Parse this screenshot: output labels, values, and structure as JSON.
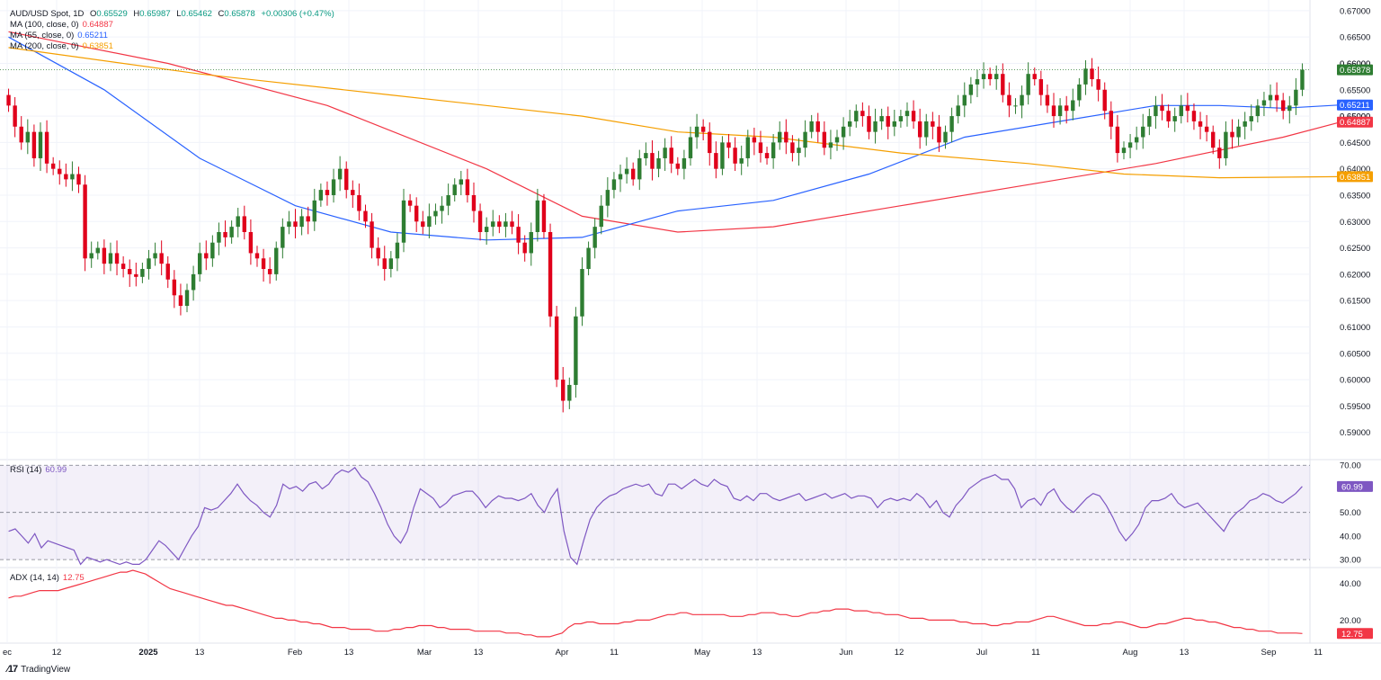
{
  "header": {
    "symbol": "AUD/USD Spot, 1D",
    "open_label": "O",
    "open": "0.65529",
    "high_label": "H",
    "high": "0.65987",
    "low_label": "L",
    "low": "0.65462",
    "close_label": "C",
    "close": "0.65878",
    "change": "+0.00306 (+0.47%)"
  },
  "ma_legend": [
    {
      "label": "MA (100, close, 0)",
      "value": "0.64887",
      "color": "#f23645"
    },
    {
      "label": "MA (55, close, 0)",
      "value": "0.65211",
      "color": "#2962ff"
    },
    {
      "label": "MA (200, close, 0)",
      "value": "0.63851",
      "color": "#f59f00"
    }
  ],
  "rsi_legend": {
    "label": "RSI (14)",
    "value": "60.99",
    "color": "#7e57c2"
  },
  "adx_legend": {
    "label": "ADX (14, 14)",
    "value": "12.75",
    "color": "#f23645"
  },
  "branding": "TradingView",
  "colors": {
    "up": "#26a69a",
    "up_body": "#2e7d32",
    "down": "#e0001b",
    "grid": "#f0f3fa"
  },
  "chart_data": [
    {
      "type": "candlestick",
      "title": "AUD/USD Spot, 1D",
      "ylim": [
        0.585,
        0.671
      ],
      "yticks": [
        "0.67000",
        "0.66500",
        "0.66000",
        "0.65500",
        "0.65000",
        "0.64500",
        "0.64000",
        "0.63500",
        "0.63000",
        "0.62500",
        "0.62000",
        "0.61500",
        "0.61000",
        "0.60500",
        "0.60000",
        "0.59500",
        "0.59000"
      ],
      "xticks": [
        "ec",
        "12",
        "2025",
        "13",
        "Feb",
        "13",
        "Mar",
        "13",
        "Apr",
        "11",
        "May",
        "13",
        "Jun",
        "12",
        "Jul",
        "11",
        "Aug",
        "13",
        "Sep",
        "11"
      ],
      "last_price": {
        "value": 0.65878,
        "label": "0.65878"
      },
      "price_tags": [
        {
          "label": "0.66000",
          "value": 0.66,
          "color": "#131722",
          "bg": "none"
        },
        {
          "label": "0.65878",
          "value": 0.65878,
          "color": "#ffffff",
          "bg": "#2e7d32"
        },
        {
          "label": "0.65211",
          "value": 0.65211,
          "color": "#ffffff",
          "bg": "#2962ff"
        },
        {
          "label": "0.65000",
          "value": 0.65,
          "color": "#131722",
          "bg": "none"
        },
        {
          "label": "0.64887",
          "value": 0.64887,
          "color": "#ffffff",
          "bg": "#f23645"
        },
        {
          "label": "0.63851",
          "value": 0.63851,
          "color": "#ffffff",
          "bg": "#f59f00"
        }
      ],
      "closes": [
        0.652,
        0.648,
        0.645,
        0.647,
        0.642,
        0.647,
        0.641,
        0.64,
        0.639,
        0.638,
        0.639,
        0.637,
        0.623,
        0.624,
        0.625,
        0.622,
        0.624,
        0.622,
        0.621,
        0.62,
        0.6195,
        0.621,
        0.623,
        0.624,
        0.622,
        0.619,
        0.616,
        0.614,
        0.617,
        0.62,
        0.624,
        0.623,
        0.626,
        0.628,
        0.627,
        0.629,
        0.631,
        0.628,
        0.624,
        0.623,
        0.621,
        0.62,
        0.625,
        0.629,
        0.63,
        0.629,
        0.631,
        0.63,
        0.634,
        0.636,
        0.635,
        0.638,
        0.64,
        0.636,
        0.635,
        0.632,
        0.63,
        0.625,
        0.623,
        0.621,
        0.623,
        0.626,
        0.634,
        0.633,
        0.63,
        0.629,
        0.631,
        0.632,
        0.633,
        0.635,
        0.637,
        0.638,
        0.635,
        0.632,
        0.628,
        0.629,
        0.63,
        0.629,
        0.63,
        0.629,
        0.626,
        0.624,
        0.628,
        0.634,
        0.628,
        0.612,
        0.6,
        0.596,
        0.599,
        0.612,
        0.621,
        0.625,
        0.629,
        0.633,
        0.636,
        0.638,
        0.639,
        0.64,
        0.638,
        0.642,
        0.643,
        0.64,
        0.642,
        0.644,
        0.641,
        0.64,
        0.642,
        0.646,
        0.648,
        0.647,
        0.643,
        0.64,
        0.645,
        0.644,
        0.641,
        0.642,
        0.646,
        0.645,
        0.643,
        0.642,
        0.645,
        0.647,
        0.645,
        0.643,
        0.644,
        0.647,
        0.649,
        0.647,
        0.644,
        0.645,
        0.646,
        0.648,
        0.649,
        0.651,
        0.65,
        0.647,
        0.649,
        0.65,
        0.648,
        0.649,
        0.65,
        0.651,
        0.649,
        0.646,
        0.649,
        0.648,
        0.645,
        0.647,
        0.65,
        0.652,
        0.654,
        0.656,
        0.657,
        0.658,
        0.657,
        0.658,
        0.654,
        0.652,
        0.652,
        0.654,
        0.658,
        0.657,
        0.654,
        0.652,
        0.65,
        0.652,
        0.651,
        0.653,
        0.656,
        0.659,
        0.657,
        0.655,
        0.651,
        0.648,
        0.643,
        0.644,
        0.645,
        0.646,
        0.648,
        0.65,
        0.652,
        0.651,
        0.649,
        0.65,
        0.652,
        0.651,
        0.649,
        0.648,
        0.647,
        0.644,
        0.642,
        0.647,
        0.646,
        0.648,
        0.649,
        0.65,
        0.652,
        0.653,
        0.654,
        0.653,
        0.651,
        0.652,
        0.655,
        0.6588
      ],
      "series": [
        {
          "name": "MA (100, close, 0)",
          "color": "#f23645",
          "points": [
            [
              0,
              0.666
            ],
            [
              25,
              0.66
            ],
            [
              50,
              0.652
            ],
            [
              75,
              0.64
            ],
            [
              90,
              0.631
            ],
            [
              105,
              0.628
            ],
            [
              120,
              0.629
            ],
            [
              140,
              0.633
            ],
            [
              160,
              0.637
            ],
            [
              180,
              0.641
            ],
            [
              200,
              0.646
            ],
            [
              209,
              0.64887
            ]
          ]
        },
        {
          "name": "MA (55, close, 0)",
          "color": "#2962ff",
          "points": [
            [
              0,
              0.665
            ],
            [
              15,
              0.655
            ],
            [
              30,
              0.642
            ],
            [
              45,
              0.633
            ],
            [
              60,
              0.628
            ],
            [
              75,
              0.6265
            ],
            [
              90,
              0.627
            ],
            [
              105,
              0.632
            ],
            [
              120,
              0.634
            ],
            [
              135,
              0.639
            ],
            [
              150,
              0.646
            ],
            [
              165,
              0.649
            ],
            [
              180,
              0.652
            ],
            [
              190,
              0.652
            ],
            [
              200,
              0.6515
            ],
            [
              209,
              0.65211
            ]
          ]
        },
        {
          "name": "MA (200, close, 0)",
          "color": "#f59f00",
          "points": [
            [
              0,
              0.663
            ],
            [
              30,
              0.658
            ],
            [
              60,
              0.654
            ],
            [
              90,
              0.65
            ],
            [
              105,
              0.647
            ],
            [
              120,
              0.646
            ],
            [
              140,
              0.643
            ],
            [
              160,
              0.641
            ],
            [
              175,
              0.639
            ],
            [
              190,
              0.6383
            ],
            [
              209,
              0.63851
            ]
          ]
        }
      ]
    },
    {
      "type": "line",
      "title": "RSI (14)",
      "ylim": [
        27,
        72
      ],
      "yticks": [
        "70.00",
        "50.00",
        "40.00",
        "30.00"
      ],
      "levels": [
        70,
        50,
        30
      ],
      "series": [
        {
          "name": "RSI (14)",
          "color": "#7e57c2",
          "values": [
            42,
            43,
            40,
            37,
            41,
            35,
            38,
            37,
            36,
            35,
            34,
            28,
            31,
            30,
            29,
            30,
            29,
            28,
            29,
            28,
            28,
            30,
            34,
            38,
            36,
            33,
            30,
            35,
            40,
            44,
            52,
            51,
            52,
            55,
            58,
            62,
            58,
            55,
            53,
            50,
            48,
            53,
            62,
            60,
            61,
            59,
            62,
            63,
            60,
            62,
            66,
            68,
            67,
            69,
            65,
            63,
            58,
            52,
            45,
            40,
            37,
            42,
            52,
            60,
            58,
            56,
            52,
            54,
            57,
            58,
            59,
            59,
            56,
            52,
            55,
            57,
            56,
            56,
            55,
            56,
            58,
            53,
            50,
            56,
            60,
            42,
            31,
            28,
            38,
            47,
            52,
            55,
            57,
            58,
            60,
            61,
            62,
            61,
            62,
            58,
            57,
            62,
            62,
            60,
            62,
            64,
            62,
            61,
            64,
            62,
            61,
            56,
            55,
            57,
            55,
            58,
            58,
            56,
            55,
            56,
            57,
            58,
            55,
            56,
            57,
            58,
            56,
            57,
            58,
            56,
            57,
            57,
            56,
            52,
            55,
            56,
            55,
            56,
            55,
            58,
            56,
            52,
            55,
            50,
            48,
            53,
            56,
            60,
            62,
            64,
            65,
            66,
            64,
            64,
            60,
            52,
            55,
            56,
            53,
            58,
            60,
            55,
            52,
            50,
            53,
            56,
            58,
            57,
            53,
            48,
            42,
            38,
            41,
            45,
            52,
            55,
            55,
            56,
            58,
            54,
            52,
            53,
            54,
            51,
            48,
            45,
            42,
            47,
            50,
            52,
            55,
            56,
            58,
            57,
            55,
            54,
            56,
            58,
            61
          ]
        }
      ]
    },
    {
      "type": "line",
      "title": "ADX (14, 14)",
      "ylim": [
        8,
        48
      ],
      "yticks": [
        "40.00",
        "20.00"
      ],
      "series": [
        {
          "name": "ADX (14, 14)",
          "color": "#f23645",
          "values": [
            32,
            33,
            33,
            34,
            35,
            36,
            36,
            36,
            36,
            37,
            38,
            39,
            40,
            41,
            42,
            43,
            44,
            45,
            46,
            46,
            47,
            46,
            45,
            43,
            41,
            39,
            37,
            36,
            35,
            34,
            33,
            32,
            31,
            30,
            29,
            28,
            28,
            27,
            26,
            25,
            24,
            23,
            22,
            21,
            21,
            20,
            20,
            19,
            19,
            18,
            18,
            17,
            16,
            16,
            16,
            15,
            15,
            15,
            15,
            14,
            14,
            14,
            15,
            15,
            16,
            16,
            17,
            17,
            17,
            16,
            16,
            15,
            15,
            15,
            15,
            14,
            14,
            14,
            14,
            14,
            13,
            13,
            13,
            12,
            12,
            11,
            11,
            11,
            12,
            13,
            16,
            18,
            18,
            19,
            19,
            18,
            18,
            18,
            18,
            19,
            19,
            20,
            20,
            20,
            21,
            22,
            23,
            23,
            24,
            24,
            23,
            23,
            23,
            23,
            23,
            23,
            22,
            22,
            22,
            23,
            23,
            24,
            24,
            24,
            23,
            23,
            22,
            22,
            23,
            24,
            24,
            25,
            25,
            26,
            26,
            26,
            25,
            25,
            25,
            24,
            24,
            23,
            23,
            23,
            22,
            21,
            21,
            21,
            20,
            20,
            20,
            20,
            20,
            19,
            19,
            18,
            18,
            18,
            17,
            17,
            18,
            18,
            19,
            19,
            19,
            20,
            21,
            22,
            22,
            21,
            20,
            19,
            18,
            17,
            17,
            17,
            18,
            18,
            19,
            19,
            18,
            17,
            16,
            16,
            17,
            18,
            18,
            19,
            20,
            21,
            21,
            20,
            20,
            19,
            19,
            18,
            17,
            16,
            16,
            15,
            15,
            14,
            14,
            14,
            13,
            13,
            13,
            13,
            12.75
          ]
        }
      ]
    }
  ]
}
